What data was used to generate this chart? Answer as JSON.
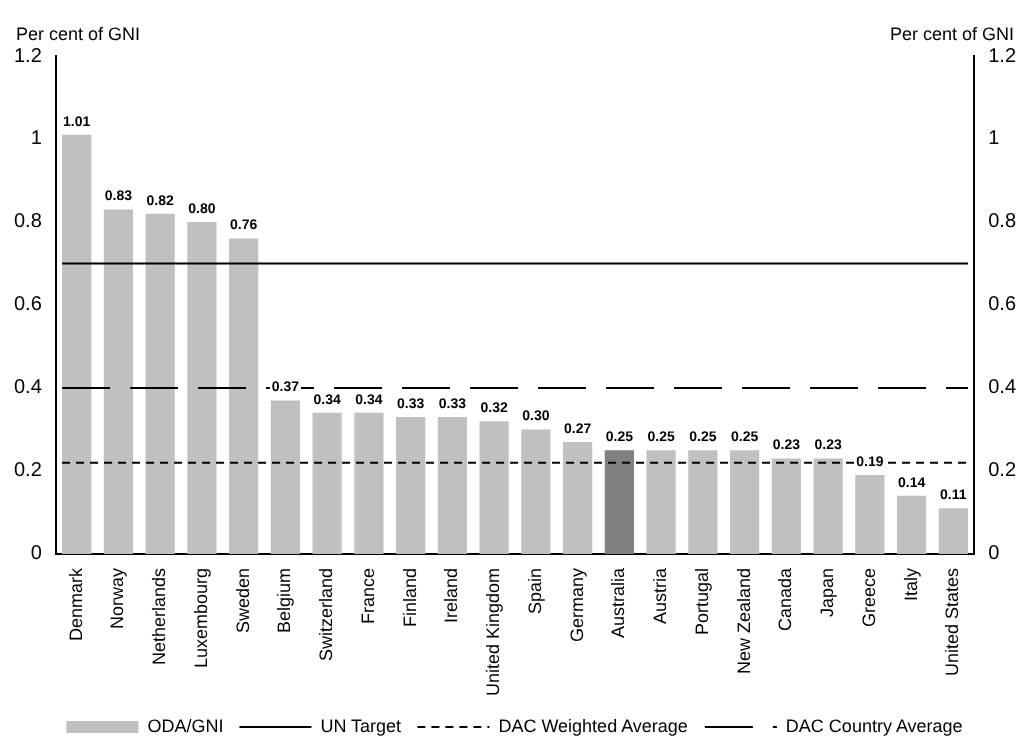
{
  "chart_data": {
    "type": "bar",
    "ylabel": "Per cent of GNI",
    "y2label": "Per cent of GNI",
    "categories": [
      "Denmark",
      "Norway",
      "Netherlands",
      "Luxembourg",
      "Sweden",
      "Belgium",
      "Switzerland",
      "France",
      "Finland",
      "Ireland",
      "United Kingdom",
      "Spain",
      "Germany",
      "Australia",
      "Austria",
      "Portugal",
      "New Zealand",
      "Canada",
      "Japan",
      "Greece",
      "Italy",
      "United States"
    ],
    "series": [
      {
        "name": "ODA/GNI",
        "color": "#c0c0c0",
        "colors": [
          "#c0c0c0",
          "#c0c0c0",
          "#c0c0c0",
          "#c0c0c0",
          "#c0c0c0",
          "#c0c0c0",
          "#c0c0c0",
          "#c0c0c0",
          "#c0c0c0",
          "#c0c0c0",
          "#c0c0c0",
          "#c0c0c0",
          "#c0c0c0",
          "#808080",
          "#c0c0c0",
          "#c0c0c0",
          "#c0c0c0",
          "#c0c0c0",
          "#c0c0c0",
          "#c0c0c0",
          "#c0c0c0",
          "#c0c0c0"
        ],
        "values": [
          1.01,
          0.83,
          0.82,
          0.8,
          0.76,
          0.37,
          0.34,
          0.34,
          0.33,
          0.33,
          0.32,
          0.3,
          0.27,
          0.25,
          0.25,
          0.25,
          0.25,
          0.23,
          0.23,
          0.19,
          0.14,
          0.11
        ],
        "value_labels": [
          "1.01",
          "0.83",
          "0.82",
          "0.80",
          "0.76",
          "0.37",
          "0.34",
          "0.34",
          "0.33",
          "0.33",
          "0.32",
          "0.30",
          "0.27",
          "0.25",
          "0.25",
          "0.25",
          "0.25",
          "0.23",
          "0.23",
          "0.19",
          "0.14",
          "0.11"
        ]
      }
    ],
    "ref_lines": [
      {
        "axis": "y",
        "value": 0.7,
        "label": "UN Target",
        "color": "#000000",
        "line_style": "solid"
      },
      {
        "axis": "y",
        "value": 0.22,
        "label": "DAC Weighted Average",
        "color": "#000000",
        "line_style": "dashed"
      },
      {
        "axis": "y",
        "value": 0.4,
        "label": "DAC Country Average",
        "color": "#000000",
        "line_style": "longdash"
      }
    ],
    "ylim": [
      0,
      1.2
    ],
    "yticks": [
      0,
      0.2,
      0.4,
      0.6,
      0.8,
      1,
      1.2
    ],
    "y2lim": [
      0,
      1.2
    ],
    "y2ticks": [
      0,
      0.2,
      0.4,
      0.6,
      0.8,
      1,
      1.2
    ],
    "grid": false,
    "legend": "bottom"
  }
}
